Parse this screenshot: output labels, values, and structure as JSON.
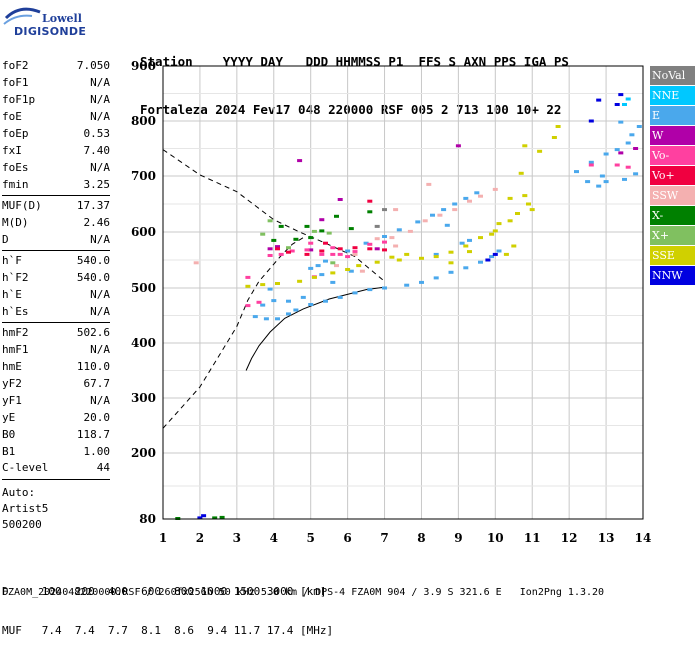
{
  "logo": {
    "top": "Lowell",
    "bottom": "DIGISONDE"
  },
  "header": {
    "line1": "Station    YYYY DAY   DDD HHMMSS P1  FFS S AXN PPS IGA PS",
    "line2": "Fortaleza 2024 Fev17 048 220000 RSF 005 2 713 100 10+ 22"
  },
  "params": [
    {
      "label": "foF2",
      "value": "7.050"
    },
    {
      "label": "foF1",
      "value": "N/A"
    },
    {
      "label": "foF1p",
      "value": "N/A"
    },
    {
      "label": "foE",
      "value": "N/A"
    },
    {
      "label": "foEp",
      "value": "0.53"
    },
    {
      "label": "fxI",
      "value": "7.40"
    },
    {
      "label": "foEs",
      "value": "N/A"
    },
    {
      "label": "fmin",
      "value": "3.25",
      "sep": true
    },
    {
      "label": "MUF(D)",
      "value": "17.37"
    },
    {
      "label": "M(D)",
      "value": "2.46"
    },
    {
      "label": "D",
      "value": "N/A",
      "sep": true
    },
    {
      "label": "h`F",
      "value": "540.0"
    },
    {
      "label": "h`F2",
      "value": "540.0"
    },
    {
      "label": "h`E",
      "value": "N/A"
    },
    {
      "label": "h`Es",
      "value": "N/A",
      "sep": true
    },
    {
      "label": "hmF2",
      "value": "502.6"
    },
    {
      "label": "hmF1",
      "value": "N/A"
    },
    {
      "label": "hmE",
      "value": "110.0"
    },
    {
      "label": "yF2",
      "value": "67.7"
    },
    {
      "label": "yF1",
      "value": "N/A"
    },
    {
      "label": "yE",
      "value": "20.0"
    },
    {
      "label": "B0",
      "value": "118.7"
    },
    {
      "label": "B1",
      "value": "1.00"
    }
  ],
  "c_level": {
    "label": "C-level",
    "value": "44"
  },
  "auto": [
    "Auto:",
    "Artist5",
    "500200"
  ],
  "legend": [
    {
      "label": "NoVal",
      "color": "#808080"
    },
    {
      "label": "NNE",
      "color": "#00c8ff"
    },
    {
      "label": "E",
      "color": "#4aa8ec"
    },
    {
      "label": "W",
      "color": "#b000a8"
    },
    {
      "label": "Vo-",
      "color": "#ff40a0"
    },
    {
      "label": "Vo+",
      "color": "#f00040"
    },
    {
      "label": "SSW",
      "color": "#f4b0b0"
    },
    {
      "label": "X-",
      "color": "#008000"
    },
    {
      "label": "X+",
      "color": "#80c060"
    },
    {
      "label": "SSE",
      "color": "#d0d000"
    },
    {
      "label": "NNW",
      "color": "#0000e0"
    }
  ],
  "footer": {
    "row1": "D     100  200  400  600  800 1000 1500 3000 [km]",
    "row2": "MUF   7.4  7.4  7.7  8.1  8.6  9.4 11.7 17.4 [MHz]",
    "filename": "FZA0M_2024048220000.RSF / 260fx256h 50 kHz 5.0 km / DPS-4 FZA0M 904 / 3.9 S 321.6 E   Ion2Png 1.3.20"
  },
  "chart_data": {
    "type": "scatter",
    "title": "",
    "xlabel": "",
    "ylabel": "",
    "xlim": [
      1,
      14
    ],
    "ylim": [
      80,
      900
    ],
    "x_ticks": [
      1,
      2,
      3,
      4,
      5,
      6,
      7,
      8,
      9,
      10,
      11,
      12,
      13,
      14
    ],
    "y_ticks": [
      80,
      200,
      300,
      400,
      500,
      600,
      700,
      800,
      900
    ],
    "grid": true,
    "legend_position": "right",
    "profile_curve": [
      [
        7.05,
        502
      ],
      [
        6.5,
        497
      ],
      [
        5.5,
        480
      ],
      [
        4.8,
        462
      ],
      [
        4.3,
        445
      ],
      [
        3.9,
        420
      ],
      [
        3.6,
        395
      ],
      [
        3.4,
        372
      ],
      [
        3.25,
        350
      ]
    ],
    "dashed_upper": [
      [
        1.0,
        748
      ],
      [
        1.5,
        725
      ],
      [
        2.0,
        702
      ],
      [
        3.0,
        672
      ],
      [
        4.0,
        622
      ],
      [
        4.7,
        600
      ],
      [
        5.4,
        580
      ],
      [
        6.2,
        556
      ],
      [
        7.0,
        512
      ]
    ],
    "dashed_lower": [
      [
        1.0,
        245
      ],
      [
        2.0,
        320
      ],
      [
        2.5,
        375
      ],
      [
        3.0,
        430
      ],
      [
        3.3,
        478
      ],
      [
        3.6,
        512
      ],
      [
        3.9,
        535
      ],
      [
        4.2,
        558
      ],
      [
        4.5,
        578
      ],
      [
        4.8,
        590
      ]
    ],
    "series": [
      {
        "name": "E",
        "points": [
          [
            3.5,
            448
          ],
          [
            3.8,
            444
          ],
          [
            4.1,
            444
          ],
          [
            4.4,
            453
          ],
          [
            4.6,
            460
          ],
          [
            5.0,
            470
          ],
          [
            5.4,
            476
          ],
          [
            5.8,
            483
          ],
          [
            6.2,
            491
          ],
          [
            6.6,
            497
          ],
          [
            7.0,
            500
          ],
          [
            7.6,
            505
          ],
          [
            8.0,
            510
          ],
          [
            8.4,
            518
          ],
          [
            8.8,
            528
          ],
          [
            9.2,
            536
          ],
          [
            9.6,
            546
          ],
          [
            9.9,
            556
          ],
          [
            10.1,
            566
          ],
          [
            5.0,
            535
          ],
          [
            5.4,
            548
          ],
          [
            6.0,
            566
          ],
          [
            6.5,
            580
          ],
          [
            7.0,
            592
          ],
          [
            7.4,
            604
          ],
          [
            7.9,
            618
          ],
          [
            8.3,
            630
          ],
          [
            8.6,
            640
          ],
          [
            8.9,
            650
          ],
          [
            9.2,
            660
          ],
          [
            9.5,
            670
          ],
          [
            12.2,
            708
          ],
          [
            12.5,
            690
          ],
          [
            12.8,
            682
          ],
          [
            13.0,
            690
          ],
          [
            12.6,
            725
          ],
          [
            12.9,
            700
          ],
          [
            13.5,
            694
          ],
          [
            13.8,
            704
          ],
          [
            13.0,
            740
          ],
          [
            13.3,
            748
          ],
          [
            13.6,
            760
          ],
          [
            13.7,
            775
          ],
          [
            13.9,
            790
          ],
          [
            13.4,
            798
          ],
          [
            5.6,
            510
          ],
          [
            4.8,
            483
          ],
          [
            4.4,
            476
          ],
          [
            4.0,
            477
          ],
          [
            3.7,
            469
          ],
          [
            5.3,
            524
          ],
          [
            6.1,
            530
          ],
          [
            5.2,
            540
          ],
          [
            3.9,
            498
          ],
          [
            8.4,
            560
          ],
          [
            9.1,
            580
          ],
          [
            8.7,
            612
          ],
          [
            9.3,
            585
          ]
        ]
      },
      {
        "name": "NNE",
        "points": [
          [
            13.5,
            830
          ],
          [
            13.6,
            840
          ]
        ]
      },
      {
        "name": "W",
        "points": [
          [
            4.7,
            728
          ],
          [
            5.8,
            658
          ],
          [
            5.3,
            622
          ],
          [
            6.8,
            570
          ],
          [
            5.0,
            568
          ],
          [
            4.1,
            574
          ],
          [
            3.9,
            570
          ],
          [
            9.0,
            755
          ],
          [
            13.4,
            742
          ],
          [
            13.8,
            750
          ]
        ]
      },
      {
        "name": "Vo-",
        "points": [
          [
            3.9,
            558
          ],
          [
            4.2,
            560
          ],
          [
            4.5,
            566
          ],
          [
            4.9,
            568
          ],
          [
            5.3,
            560
          ],
          [
            5.8,
            560
          ],
          [
            6.2,
            565
          ],
          [
            6.6,
            578
          ],
          [
            7.0,
            582
          ],
          [
            5.6,
            572
          ],
          [
            5.0,
            580
          ],
          [
            5.6,
            560
          ],
          [
            6.0,
            556
          ],
          [
            5.1,
            520
          ],
          [
            3.3,
            519
          ],
          [
            3.3,
            468
          ],
          [
            3.6,
            474
          ],
          [
            12.6,
            720
          ],
          [
            13.3,
            720
          ],
          [
            13.6,
            716
          ]
        ]
      },
      {
        "name": "Vo+",
        "points": [
          [
            4.1,
            570
          ],
          [
            4.9,
            560
          ],
          [
            5.3,
            566
          ],
          [
            5.8,
            570
          ],
          [
            6.2,
            572
          ],
          [
            6.6,
            570
          ],
          [
            7.0,
            568
          ],
          [
            6.6,
            655
          ],
          [
            5.4,
            580
          ],
          [
            4.4,
            564
          ]
        ]
      },
      {
        "name": "SSW",
        "points": [
          [
            1.9,
            545
          ],
          [
            6.4,
            530
          ],
          [
            6.8,
            588
          ],
          [
            7.2,
            590
          ],
          [
            7.7,
            601
          ],
          [
            8.1,
            620
          ],
          [
            8.5,
            630
          ],
          [
            8.9,
            640
          ],
          [
            9.3,
            655
          ],
          [
            9.6,
            664
          ],
          [
            10.0,
            676
          ],
          [
            7.3,
            575
          ],
          [
            6.2,
            560
          ],
          [
            5.7,
            540
          ],
          [
            8.2,
            685
          ],
          [
            7.3,
            640
          ]
        ]
      },
      {
        "name": "X-",
        "points": [
          [
            1.4,
            81
          ],
          [
            2.4,
            82
          ],
          [
            2.6,
            83
          ],
          [
            4.6,
            587
          ],
          [
            5.0,
            590
          ],
          [
            4.2,
            610
          ],
          [
            4.9,
            610
          ],
          [
            5.7,
            628
          ],
          [
            6.1,
            606
          ],
          [
            4.0,
            585
          ],
          [
            5.3,
            602
          ],
          [
            6.6,
            636
          ]
        ]
      },
      {
        "name": "X+",
        "points": [
          [
            3.7,
            596
          ],
          [
            4.4,
            572
          ],
          [
            5.5,
            598
          ],
          [
            5.6,
            545
          ],
          [
            5.1,
            601
          ],
          [
            3.9,
            620
          ]
        ]
      },
      {
        "name": "SSE",
        "points": [
          [
            3.3,
            503
          ],
          [
            3.7,
            506
          ],
          [
            4.1,
            508
          ],
          [
            4.7,
            512
          ],
          [
            5.1,
            519
          ],
          [
            5.6,
            527
          ],
          [
            6.0,
            533
          ],
          [
            6.3,
            540
          ],
          [
            7.2,
            555
          ],
          [
            7.6,
            560
          ],
          [
            8.0,
            553
          ],
          [
            8.4,
            556
          ],
          [
            8.8,
            564
          ],
          [
            9.2,
            575
          ],
          [
            9.6,
            590
          ],
          [
            10.0,
            602
          ],
          [
            10.4,
            620
          ],
          [
            10.6,
            633
          ],
          [
            10.9,
            650
          ],
          [
            11.0,
            640
          ],
          [
            8.8,
            545
          ],
          [
            9.3,
            565
          ],
          [
            9.9,
            596
          ],
          [
            10.3,
            560
          ],
          [
            10.5,
            575
          ],
          [
            10.1,
            615
          ],
          [
            10.8,
            665
          ],
          [
            10.4,
            660
          ],
          [
            10.7,
            705
          ],
          [
            11.2,
            745
          ],
          [
            10.8,
            755
          ],
          [
            11.6,
            770
          ],
          [
            11.7,
            790
          ],
          [
            7.4,
            550
          ],
          [
            6.8,
            546
          ]
        ]
      },
      {
        "name": "NNW",
        "points": [
          [
            10.0,
            560
          ],
          [
            9.8,
            550
          ],
          [
            12.6,
            800
          ],
          [
            12.8,
            838
          ],
          [
            13.3,
            830
          ],
          [
            13.4,
            848
          ],
          [
            2.1,
            86
          ],
          [
            2.0,
            82
          ]
        ]
      },
      {
        "name": "NoVal",
        "points": [
          [
            6.8,
            610
          ],
          [
            7.0,
            640
          ]
        ]
      }
    ]
  }
}
